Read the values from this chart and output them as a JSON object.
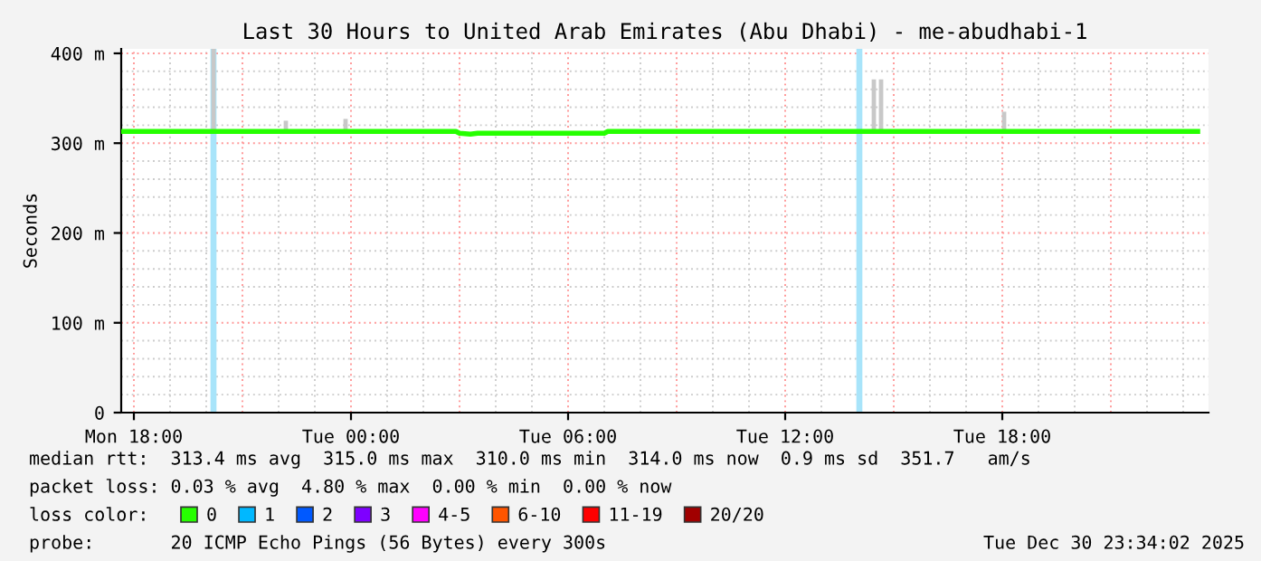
{
  "chart_data": {
    "type": "line",
    "title": "Last 30 Hours to United Arab Emirates (Abu Dhabi) - me-abudhabi-1",
    "ylabel": "Seconds",
    "xlim": [
      "2025-12-29T17:39",
      "2025-12-30T23:42"
    ],
    "ylim": [
      0,
      405
    ],
    "xticks": [
      {
        "value": "2025-12-29T18:00",
        "label": "Mon 18:00"
      },
      {
        "value": "2025-12-30T00:00",
        "label": "Tue 00:00"
      },
      {
        "value": "2025-12-30T06:00",
        "label": "Tue 06:00"
      },
      {
        "value": "2025-12-30T12:00",
        "label": "Tue 12:00"
      },
      {
        "value": "2025-12-30T18:00",
        "label": "Tue 18:00"
      }
    ],
    "yticks": [
      0,
      {
        "value": 100,
        "label": "100 m"
      },
      {
        "value": 200,
        "label": "200 m"
      },
      {
        "value": 300,
        "label": "300 m"
      },
      {
        "value": 400,
        "label": "400 m"
      }
    ],
    "grid": true,
    "legend": "bottom",
    "legend_title": "loss color:",
    "series": [
      {
        "type": "bar",
        "color": "#c8c8c8",
        "x": [
          "2025-12-29T20:12",
          "2025-12-29T22:12",
          "2025-12-29T23:51",
          "2025-12-30T14:27",
          "2025-12-30T14:39",
          "2025-12-30T18:03"
        ],
        "base": [
          313,
          313,
          313,
          313,
          313,
          313
        ],
        "values": [
          92,
          12,
          14,
          58,
          58,
          22
        ]
      },
      {
        "name": "0",
        "color": "#26ff00",
        "x": [
          "2025-12-29T17:39",
          "2025-12-30T02:54",
          "2025-12-30T03:00",
          "2025-12-30T03:18",
          "2025-12-30T03:30",
          "2025-12-30T07:00",
          "2025-12-30T07:06",
          "2025-12-30T23:24"
        ],
        "values": [
          313,
          313,
          311,
          310,
          311,
          311,
          313,
          313
        ]
      },
      {
        "name": "1",
        "color": "#00b8ff"
      },
      {
        "name": "2",
        "color": "#0059ff"
      },
      {
        "name": "3",
        "color": "#7e00ff"
      },
      {
        "name": "4-5",
        "color": "#ff00ff"
      },
      {
        "name": "6-10",
        "color": "#ff5500"
      },
      {
        "name": "11-19",
        "color": "#ff0000"
      },
      {
        "name": "20/20",
        "color": "#a10000"
      }
    ],
    "bands": [
      {
        "axis": "x",
        "from": "2025-12-29T20:07",
        "to": "2025-12-29T20:17",
        "color": "#a8e4fa"
      },
      {
        "axis": "x",
        "from": "2025-12-30T13:58",
        "to": "2025-12-30T14:08",
        "color": "#a8e4fa"
      }
    ],
    "annotations": [
      "median rtt:  313.4 ms avg  315.0 ms max  310.0 ms min  314.0 ms now  0.9 ms sd  351.7   am/s",
      "packet loss: 0.03 % avg  4.80 % max  0.00 % min  0.00 % now",
      "probe:       20 ICMP Echo Pings (56 Bytes) every 300s",
      "Tue Dec 30 23:34:02 2025"
    ]
  }
}
